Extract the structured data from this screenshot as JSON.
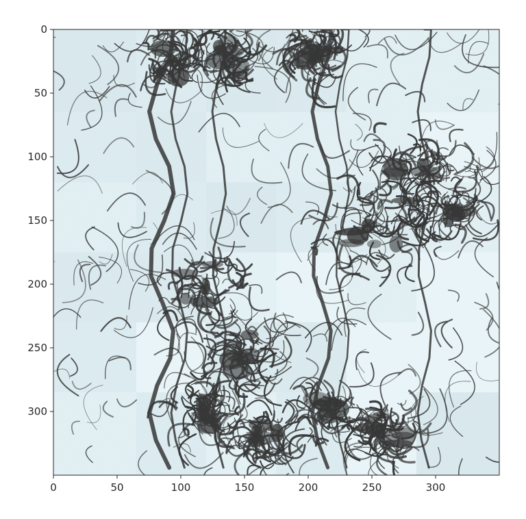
{
  "figure": {
    "axes": {
      "xlim": [
        0,
        350
      ],
      "ylim": [
        350,
        0
      ],
      "x_ticks": [
        0,
        50,
        100,
        150,
        200,
        250,
        300
      ],
      "y_ticks": [
        0,
        50,
        100,
        150,
        200,
        250,
        300
      ],
      "x_tick_labels": [
        "0",
        "50",
        "100",
        "150",
        "200",
        "250",
        "300"
      ],
      "y_tick_labels": [
        "0",
        "50",
        "100",
        "150",
        "200",
        "250",
        "300"
      ]
    },
    "colors": {
      "paper": "#dfeef2",
      "ink": "#333333"
    },
    "image_description": "grayscale-blue pen sketch image split into shuffled patches"
  }
}
